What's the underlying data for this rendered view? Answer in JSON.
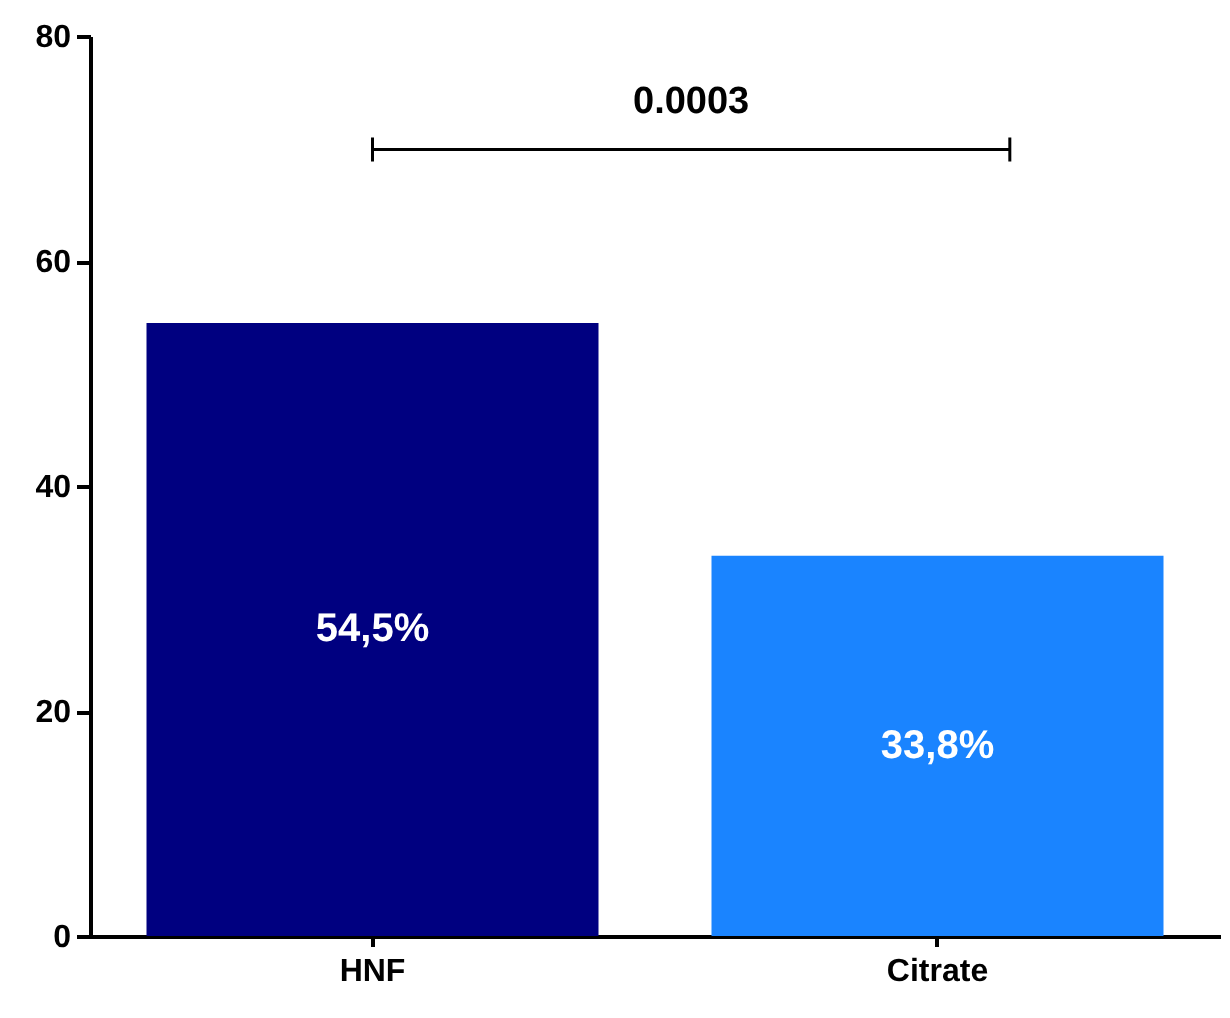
{
  "chart_data": {
    "type": "bar",
    "categories": [
      "HNF",
      "Citrate"
    ],
    "values": [
      54.5,
      33.8
    ],
    "colors": [
      "#000080",
      "#1a84ff"
    ],
    "value_labels": [
      "54,5%",
      "33,8%"
    ],
    "ylim": [
      0,
      80
    ],
    "yticks": [
      0,
      20,
      40,
      60,
      80
    ],
    "grid": false,
    "annotations": [
      "0.0003"
    ]
  }
}
